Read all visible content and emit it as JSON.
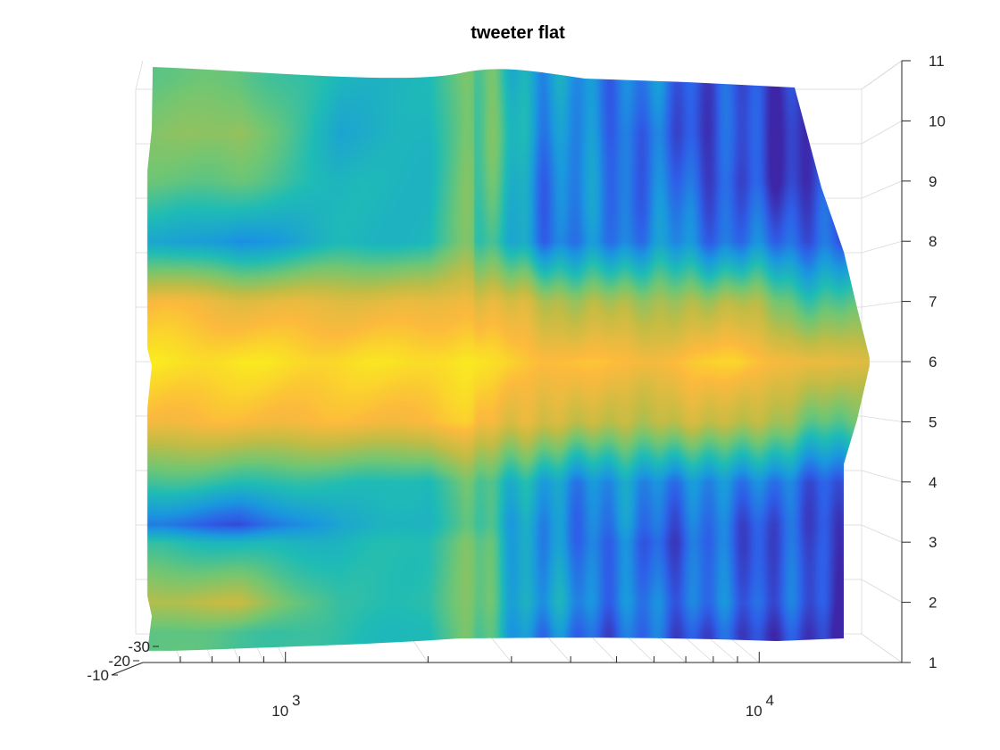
{
  "chart_data": {
    "type": "surface",
    "title": "tweeter flat",
    "view": "3D surface plot viewed from above, colormap parula",
    "x_scale": "log",
    "xlim": [
      500,
      20000
    ],
    "x_major_ticks": [
      {
        "value": 1000,
        "base": "10",
        "exp": "3"
      },
      {
        "value": 10000,
        "base": "10",
        "exp": "4"
      }
    ],
    "x_minor_ticks": [
      600,
      700,
      800,
      900,
      2000,
      3000,
      4000,
      5000,
      6000,
      7000,
      8000,
      9000
    ],
    "ylim": [
      1,
      11
    ],
    "y_ticks": [
      "1",
      "2",
      "3",
      "4",
      "5",
      "6",
      "7",
      "8",
      "9",
      "10",
      "11"
    ],
    "zlim": [
      -30,
      -10
    ],
    "z_ticks": [
      "-10",
      "-20",
      "-30"
    ],
    "grid": true,
    "colormap": [
      "#3e26a8",
      "#2e5fe8",
      "#1a99de",
      "#1fbcb5",
      "#71c673",
      "#c1bc45",
      "#fcba3d",
      "#f9fb15"
    ],
    "surface_profile": {
      "description": "approximate relative level (0 = low/blue, 1 = high/yellow) across angles at each frequency",
      "y": [
        1.5,
        2,
        3,
        3.3,
        4,
        5,
        6,
        7,
        8,
        9,
        9.8,
        10.7
      ],
      "columns": [
        {
          "freq": 550,
          "levels": [
            0.55,
            0.7,
            0.45,
            0.2,
            0.5,
            0.85,
            0.95,
            0.85,
            0.35,
            0.55,
            0.6,
            0.55
          ]
        },
        {
          "freq": 800,
          "levels": [
            0.5,
            0.72,
            0.4,
            0.1,
            0.45,
            0.85,
            0.95,
            0.8,
            0.25,
            0.55,
            0.65,
            0.55
          ]
        },
        {
          "freq": 1300,
          "levels": [
            0.45,
            0.45,
            0.4,
            0.35,
            0.45,
            0.85,
            0.93,
            0.8,
            0.4,
            0.4,
            0.35,
            0.4
          ]
        },
        {
          "freq": 2000,
          "levels": [
            0.4,
            0.45,
            0.45,
            0.4,
            0.4,
            0.85,
            0.95,
            0.8,
            0.4,
            0.4,
            0.4,
            0.4
          ]
        },
        {
          "freq": 2400,
          "levels": [
            0.6,
            0.6,
            0.6,
            0.55,
            0.6,
            0.9,
            0.95,
            0.85,
            0.6,
            0.6,
            0.6,
            0.6
          ]
        },
        {
          "freq": 3500,
          "levels": [
            0.2,
            0.3,
            0.25,
            0.25,
            0.3,
            0.75,
            0.88,
            0.7,
            0.2,
            0.25,
            0.3,
            0.3
          ]
        },
        {
          "freq": 6000,
          "levels": [
            0.15,
            0.2,
            0.15,
            0.2,
            0.25,
            0.7,
            0.85,
            0.65,
            0.25,
            0.2,
            0.15,
            0.2
          ]
        },
        {
          "freq": 9000,
          "levels": [
            0.1,
            0.2,
            0.15,
            0.15,
            0.25,
            0.75,
            0.92,
            0.7,
            0.2,
            0.1,
            0.1,
            0.1
          ]
        },
        {
          "freq": 13000,
          "levels": [
            0.05,
            0.1,
            0.1,
            0.1,
            0.15,
            0.55,
            0.8,
            0.5,
            0.15,
            0.05,
            0.05,
            0.05
          ]
        }
      ],
      "surface_extent_freq": [
        520,
        17000
      ]
    }
  }
}
